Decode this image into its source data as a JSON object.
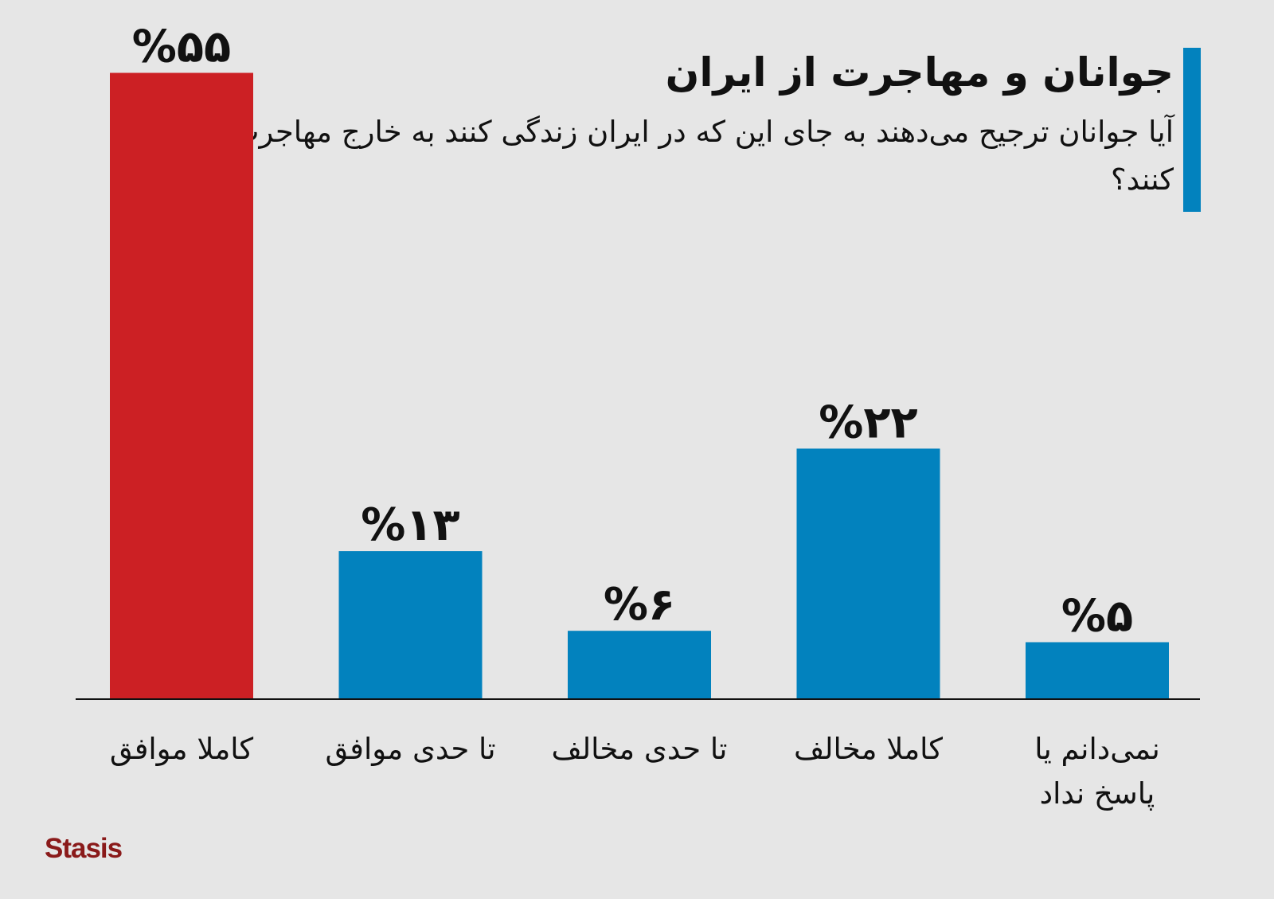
{
  "header": {
    "title": "جوانان و مهاجرت از ایران",
    "subtitle": "آیا جوانان ترجیح می‌دهند به جای این که در ایران زندگی کنند به خارج مهاجرت کنند؟"
  },
  "logo": {
    "text": "Stasis"
  },
  "colors": {
    "highlight": "#cc2024",
    "bar": "#0282be",
    "accent": "#0282be",
    "logo": "#8a1a1a"
  },
  "chart_data": {
    "type": "bar",
    "ylim": [
      0,
      60
    ],
    "grid": false,
    "categories": [
      [
        "کاملا موافق"
      ],
      [
        "تا حدی موافق"
      ],
      [
        "تا حدی مخالف"
      ],
      [
        "کاملا مخالف"
      ],
      [
        "نمی‌دانم یا",
        "پاسخ نداد"
      ]
    ],
    "values": [
      55,
      13,
      6,
      22,
      5
    ],
    "value_labels": [
      "%۵۵",
      "%۱۳",
      "%۶",
      "%۲۲",
      "%۵"
    ],
    "highlight_index": 0
  }
}
